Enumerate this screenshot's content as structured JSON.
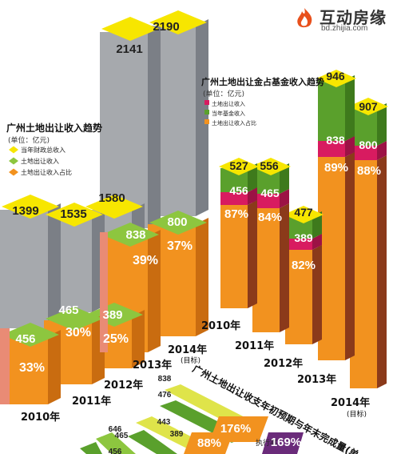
{
  "brand": {
    "name": "互动房缘",
    "url": "bd.zhijia.com",
    "colors": {
      "accent": "#e8501c"
    },
    "icon": "flame-logo-icon"
  },
  "chart_data": [
    {
      "type": "bar",
      "title": "广州土地出让收入趋势",
      "unit": "(单位：亿元)",
      "categories": [
        "2010年",
        "2011年",
        "2012年",
        "2013年",
        "2014年"
      ],
      "category_notes": [
        "",
        "",
        "",
        "",
        "(目标)"
      ],
      "series": [
        {
          "name": "当年财政总收入",
          "values": [
            1399,
            1535,
            1580,
            2141,
            2190
          ]
        },
        {
          "name": "土地出让收入",
          "values": [
            456,
            465,
            389,
            838,
            800
          ]
        },
        {
          "name": "土地出让收入占比",
          "values": [
            "33%",
            "30%",
            "25%",
            "39%",
            "37%"
          ]
        }
      ],
      "colors": {
        "total": "#a6a9ad",
        "land": "#8dc63f",
        "share": "#f2921f"
      }
    },
    {
      "type": "bar",
      "title": "广州土地出让金占基金收入趋势",
      "unit": "(单位：亿元)",
      "categories": [
        "2010年",
        "2011年",
        "2012年",
        "2013年",
        "2014年"
      ],
      "category_notes": [
        "",
        "",
        "",
        "",
        "(目标)"
      ],
      "series": [
        {
          "name": "土地出让收入",
          "values": [
            456,
            465,
            389,
            838,
            800
          ]
        },
        {
          "name": "当年基金收入",
          "values": [
            527,
            556,
            477,
            946,
            907
          ]
        },
        {
          "name": "土地出让收入占比",
          "values": [
            "87%",
            "84%",
            "82%",
            "89%",
            "88%"
          ]
        }
      ],
      "colors": {
        "land": "#d81b60",
        "fund": "#5aa02c",
        "share": "#f2921f",
        "side": "#8b3a1a"
      }
    },
    {
      "type": "bar",
      "title": "广州土地出让收支年初预期与年末完成量",
      "title_suffix": "(单",
      "labels": [
        "838",
        "476",
        "176%",
        "执行率",
        "169%",
        "443",
        "389",
        "88%",
        "646",
        "465",
        "456"
      ]
    }
  ]
}
